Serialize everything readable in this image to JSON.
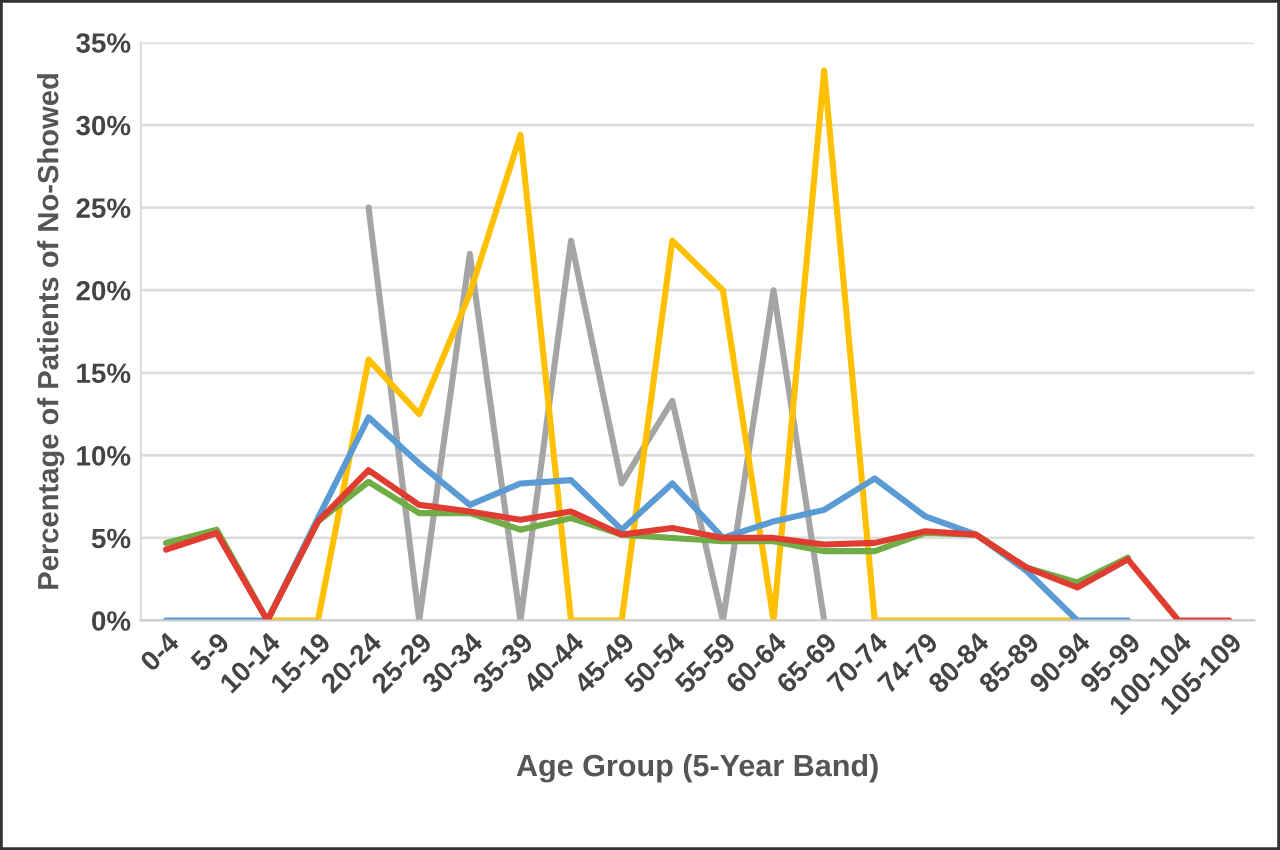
{
  "chart_data": {
    "type": "line",
    "xlabel": "Age Group (5-Year Band)",
    "ylabel": "Percentage of Patients of No-Showed",
    "categories": [
      "0-4",
      "5-9",
      "10-14",
      "15-19",
      "20-24",
      "25-29",
      "30-34",
      "35-39",
      "40-44",
      "45-49",
      "50-54",
      "55-59",
      "60-64",
      "65-69",
      "70-74",
      "74-79",
      "80-84",
      "85-89",
      "90-94",
      "95-99",
      "100-104",
      "105-109"
    ],
    "series": [
      {
        "color": "#a5a5a5",
        "values": [
          null,
          null,
          null,
          null,
          25,
          0,
          22.2,
          0,
          23,
          8.3,
          13.3,
          0,
          20,
          0,
          null,
          null,
          null,
          null,
          null,
          null,
          null,
          null
        ]
      },
      {
        "color": "#ffc000",
        "values": [
          null,
          null,
          0,
          0,
          15.8,
          12.5,
          19.8,
          29.4,
          0,
          0,
          23,
          20,
          0,
          33.3,
          0,
          0,
          0,
          0,
          0,
          null,
          null,
          null
        ]
      },
      {
        "color": "#5b9bd5",
        "values": [
          0,
          0,
          0,
          6.2,
          12.3,
          9.5,
          7,
          8.3,
          8.5,
          5.5,
          8.3,
          5,
          6,
          6.7,
          8.6,
          6.3,
          5.2,
          3,
          0,
          0,
          null,
          null
        ]
      },
      {
        "color": "#70ad47",
        "values": [
          4.7,
          5.5,
          0,
          6,
          8.4,
          6.5,
          6.5,
          5.5,
          6.2,
          5.2,
          5,
          4.8,
          4.8,
          4.2,
          4.2,
          5.3,
          5.2,
          3.2,
          2.3,
          3.8,
          null,
          null
        ]
      },
      {
        "color": "#e03c31",
        "values": [
          4.3,
          5.3,
          0,
          6,
          9.1,
          7,
          6.6,
          6.1,
          6.6,
          5.2,
          5.6,
          5,
          5,
          4.6,
          4.7,
          5.4,
          5.2,
          3.2,
          2,
          3.7,
          0,
          0
        ]
      }
    ],
    "ylim": [
      0,
      35
    ],
    "yticks": [
      {
        "value": 0,
        "label": "0%"
      },
      {
        "value": 5,
        "label": "5%"
      },
      {
        "value": 10,
        "label": "10%"
      },
      {
        "value": 15,
        "label": "15%"
      },
      {
        "value": 20,
        "label": "20%"
      },
      {
        "value": 25,
        "label": "25%"
      },
      {
        "value": 30,
        "label": "30%"
      },
      {
        "value": 35,
        "label": "35%"
      }
    ],
    "grid": "y",
    "marker": "none",
    "line_style": "solid",
    "legend": false
  }
}
